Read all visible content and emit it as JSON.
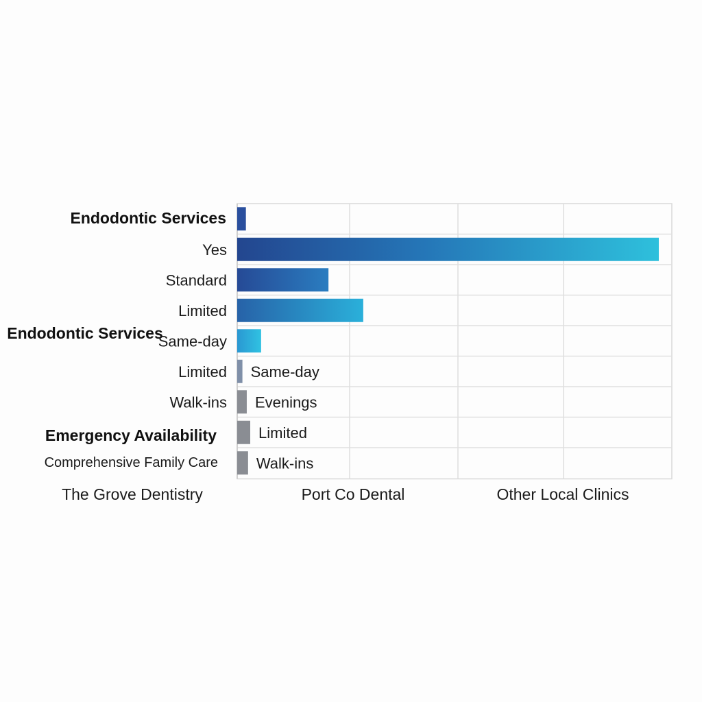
{
  "chart_data": {
    "type": "bar",
    "orientation": "horizontal",
    "title": "",
    "xlabel": "",
    "ylabel": "",
    "x_tick_labels": [
      "The Grove Dentistry",
      "Port Co Dental",
      "Other Local Clinics"
    ],
    "group_labels": [
      "Endodontic Services",
      "Endodontic Services",
      "Emergency Availability",
      "Comprehensive Family Care"
    ],
    "grid": true,
    "xlim": [
      0,
      100
    ],
    "rows": [
      {
        "label": "",
        "value": 2,
        "bar_label": "",
        "color": "#2a4f9e"
      },
      {
        "label": "Yes",
        "value": 97,
        "bar_label": "",
        "color": "#2a9fd0"
      },
      {
        "label": "Standard",
        "value": 21,
        "bar_label": "",
        "color": "#2a5aa8"
      },
      {
        "label": "Limited",
        "value": 29,
        "bar_label": "",
        "color": "#2a7cbf"
      },
      {
        "label": "Same-day",
        "value": 5.5,
        "bar_label": "",
        "color": "#2aa8d8"
      },
      {
        "label": "Limited",
        "value": 1.2,
        "bar_label": "Same-day",
        "color": "#7f8fa8"
      },
      {
        "label": "Walk-ins",
        "value": 2.2,
        "bar_label": "Evenings",
        "color": "#8a8d93"
      },
      {
        "label": "",
        "value": 3,
        "bar_label": "Limited",
        "color": "#8a8d93"
      },
      {
        "label": "",
        "value": 2.5,
        "bar_label": "Walk-ins",
        "color": "#8a8d93"
      }
    ]
  }
}
